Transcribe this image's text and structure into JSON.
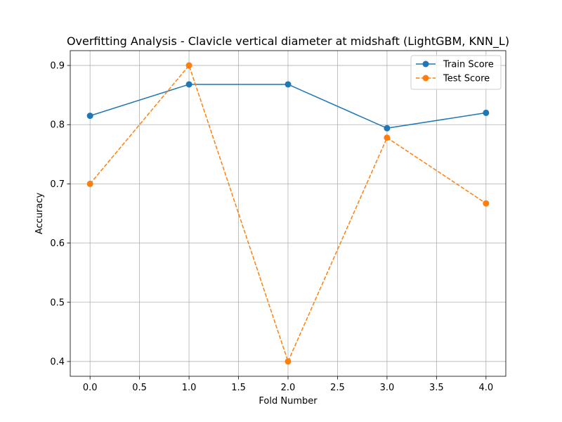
{
  "chart_data": {
    "type": "line",
    "title": "Overfitting Analysis - Clavicle vertical diameter at midshaft (LightGBM, KNN_L)",
    "xlabel": "Fold Number",
    "ylabel": "Accuracy",
    "x": [
      0,
      1,
      2,
      3,
      4
    ],
    "xlim": [
      -0.2,
      4.2
    ],
    "ylim": [
      0.375,
      0.925
    ],
    "xticks": [
      "0.0",
      "0.5",
      "1.0",
      "1.5",
      "2.0",
      "2.5",
      "3.0",
      "3.5",
      "4.0"
    ],
    "yticks": [
      "0.4",
      "0.5",
      "0.6",
      "0.7",
      "0.8",
      "0.9"
    ],
    "grid": true,
    "legend": "top-right",
    "series": [
      {
        "name": "Train Score",
        "values": [
          0.815,
          0.868,
          0.868,
          0.794,
          0.82
        ],
        "color": "#1f77b4",
        "line_style": "solid",
        "marker": "circle"
      },
      {
        "name": "Test Score",
        "values": [
          0.7,
          0.9,
          0.4,
          0.778,
          0.667
        ],
        "color": "#ff7f0e",
        "line_style": "dashed",
        "marker": "circle"
      }
    ]
  }
}
